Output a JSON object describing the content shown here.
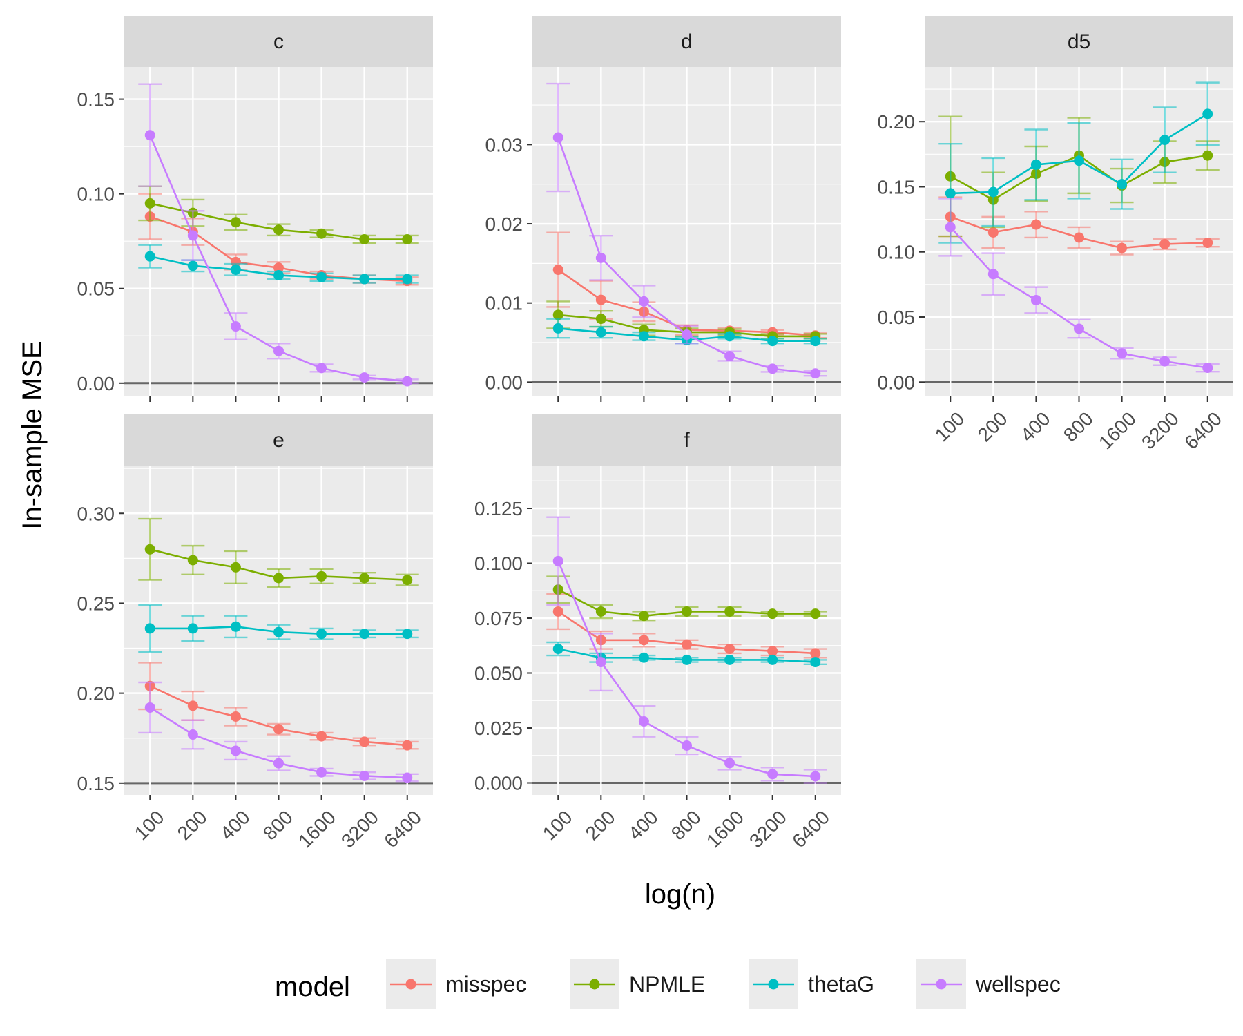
{
  "chart_data": {
    "type": "line",
    "xlabel": "log(n)",
    "ylabel": "In-sample MSE",
    "x": [
      "100",
      "200",
      "400",
      "800",
      "1600",
      "3200",
      "6400"
    ],
    "legend": {
      "title": "model",
      "position": "bottom",
      "entries": [
        "misspec",
        "NPMLE",
        "thetaG",
        "wellspec"
      ]
    },
    "colors": {
      "misspec": "#F8766D",
      "NPMLE": "#7CAE00",
      "thetaG": "#00BFC4",
      "wellspec": "#C77CFF"
    },
    "grid": true,
    "panels": [
      {
        "title": "c",
        "ylim": [
          -0.007,
          0.167
        ],
        "yticks": [
          0.0,
          0.05,
          0.1,
          0.15
        ],
        "ytick_labels": [
          "0.00",
          "0.05",
          "0.10",
          "0.15"
        ],
        "series": [
          {
            "name": "misspec",
            "values": [
              0.088,
              0.08,
              0.064,
              0.061,
              0.057,
              0.055,
              0.054
            ],
            "err": [
              0.012,
              0.007,
              0.004,
              0.003,
              0.002,
              0.002,
              0.002
            ]
          },
          {
            "name": "NPMLE",
            "values": [
              0.095,
              0.09,
              0.085,
              0.081,
              0.079,
              0.076,
              0.076
            ],
            "err": [
              0.009,
              0.007,
              0.004,
              0.003,
              0.002,
              0.002,
              0.002
            ]
          },
          {
            "name": "thetaG",
            "values": [
              0.067,
              0.062,
              0.06,
              0.057,
              0.056,
              0.055,
              0.055
            ],
            "err": [
              0.006,
              0.003,
              0.003,
              0.002,
              0.002,
              0.002,
              0.002
            ]
          },
          {
            "name": "wellspec",
            "values": [
              0.131,
              0.078,
              0.03,
              0.017,
              0.008,
              0.003,
              0.001
            ],
            "err": [
              0.027,
              0.013,
              0.007,
              0.004,
              0.002,
              0.001,
              0.001
            ]
          }
        ]
      },
      {
        "title": "d",
        "ylim": [
          -0.0018,
          0.0398
        ],
        "yticks": [
          0.0,
          0.01,
          0.02,
          0.03
        ],
        "ytick_labels": [
          "0.00",
          "0.01",
          "0.02",
          "0.03"
        ],
        "series": [
          {
            "name": "misspec",
            "values": [
              0.0142,
              0.0104,
              0.0089,
              0.0066,
              0.0065,
              0.0063,
              0.0059
            ],
            "err": [
              0.0047,
              0.0024,
              0.0012,
              0.0006,
              0.0004,
              0.0003,
              0.0003
            ]
          },
          {
            "name": "NPMLE",
            "values": [
              0.0085,
              0.008,
              0.0066,
              0.0063,
              0.0063,
              0.0058,
              0.0058
            ],
            "err": [
              0.0017,
              0.001,
              0.0007,
              0.0005,
              0.0004,
              0.0003,
              0.0003
            ]
          },
          {
            "name": "thetaG",
            "values": [
              0.0068,
              0.0063,
              0.0058,
              0.0053,
              0.0058,
              0.0052,
              0.0052
            ],
            "err": [
              0.0012,
              0.0007,
              0.0005,
              0.0004,
              0.0003,
              0.0003,
              0.0003
            ]
          },
          {
            "name": "wellspec",
            "values": [
              0.0309,
              0.0157,
              0.0102,
              0.006,
              0.0033,
              0.0017,
              0.0011
            ],
            "err": [
              0.0068,
              0.0028,
              0.002,
              0.0011,
              0.0006,
              0.0004,
              0.0003
            ]
          }
        ]
      },
      {
        "title": "d5",
        "ylim": [
          -0.011,
          0.242
        ],
        "yticks": [
          0.0,
          0.05,
          0.1,
          0.15,
          0.2
        ],
        "ytick_labels": [
          "0.00",
          "0.05",
          "0.10",
          "0.15",
          "0.20"
        ],
        "series": [
          {
            "name": "misspec",
            "values": [
              0.127,
              0.115,
              0.121,
              0.111,
              0.103,
              0.106,
              0.107
            ],
            "err": [
              0.015,
              0.012,
              0.01,
              0.008,
              0.005,
              0.004,
              0.003
            ]
          },
          {
            "name": "NPMLE",
            "values": [
              0.158,
              0.14,
              0.16,
              0.174,
              0.151,
              0.169,
              0.174
            ],
            "err": [
              0.046,
              0.021,
              0.021,
              0.029,
              0.013,
              0.016,
              0.011
            ]
          },
          {
            "name": "thetaG",
            "values": [
              0.145,
              0.146,
              0.167,
              0.17,
              0.152,
              0.186,
              0.206
            ],
            "err": [
              0.038,
              0.026,
              0.027,
              0.029,
              0.019,
              0.025,
              0.024
            ]
          },
          {
            "name": "wellspec",
            "values": [
              0.119,
              0.083,
              0.063,
              0.041,
              0.022,
              0.016,
              0.011
            ],
            "err": [
              0.022,
              0.016,
              0.01,
              0.007,
              0.004,
              0.003,
              0.003
            ]
          }
        ]
      },
      {
        "title": "e",
        "ylim": [
          0.1434,
          0.3266
        ],
        "yticks": [
          0.15,
          0.2,
          0.25,
          0.3
        ],
        "ytick_labels": [
          "0.15",
          "0.20",
          "0.25",
          "0.30"
        ],
        "series": [
          {
            "name": "misspec",
            "values": [
              0.204,
              0.193,
              0.187,
              0.18,
              0.176,
              0.173,
              0.171
            ],
            "err": [
              0.013,
              0.008,
              0.005,
              0.003,
              0.002,
              0.002,
              0.002
            ]
          },
          {
            "name": "NPMLE",
            "values": [
              0.28,
              0.274,
              0.27,
              0.264,
              0.265,
              0.264,
              0.263
            ],
            "err": [
              0.017,
              0.008,
              0.009,
              0.005,
              0.004,
              0.003,
              0.003
            ]
          },
          {
            "name": "thetaG",
            "values": [
              0.236,
              0.236,
              0.237,
              0.234,
              0.233,
              0.233,
              0.233
            ],
            "err": [
              0.013,
              0.007,
              0.006,
              0.004,
              0.003,
              0.002,
              0.002
            ]
          },
          {
            "name": "wellspec",
            "values": [
              0.192,
              0.177,
              0.168,
              0.161,
              0.156,
              0.154,
              0.153
            ],
            "err": [
              0.014,
              0.008,
              0.005,
              0.004,
              0.002,
              0.002,
              0.002
            ]
          }
        ]
      },
      {
        "title": "f",
        "ylim": [
          -0.0055,
          0.1445
        ],
        "yticks": [
          0.0,
          0.025,
          0.05,
          0.075,
          0.1,
          0.125
        ],
        "ytick_labels": [
          "0.000",
          "0.025",
          "0.050",
          "0.075",
          "0.100",
          "0.125"
        ],
        "series": [
          {
            "name": "misspec",
            "values": [
              0.078,
              0.065,
              0.065,
              0.063,
              0.061,
              0.06,
              0.059
            ],
            "err": [
              0.008,
              0.004,
              0.003,
              0.002,
              0.002,
              0.002,
              0.002
            ]
          },
          {
            "name": "NPMLE",
            "values": [
              0.088,
              0.078,
              0.076,
              0.078,
              0.078,
              0.077,
              0.077
            ],
            "err": [
              0.006,
              0.003,
              0.002,
              0.002,
              0.002,
              0.001,
              0.001
            ]
          },
          {
            "name": "thetaG",
            "values": [
              0.061,
              0.057,
              0.057,
              0.056,
              0.056,
              0.056,
              0.055
            ],
            "err": [
              0.003,
              0.002,
              0.001,
              0.001,
              0.001,
              0.001,
              0.001
            ]
          },
          {
            "name": "wellspec",
            "values": [
              0.101,
              0.055,
              0.028,
              0.017,
              0.009,
              0.004,
              0.003
            ],
            "err": [
              0.02,
              0.013,
              0.007,
              0.004,
              0.003,
              0.003,
              0.003
            ]
          }
        ]
      }
    ]
  }
}
